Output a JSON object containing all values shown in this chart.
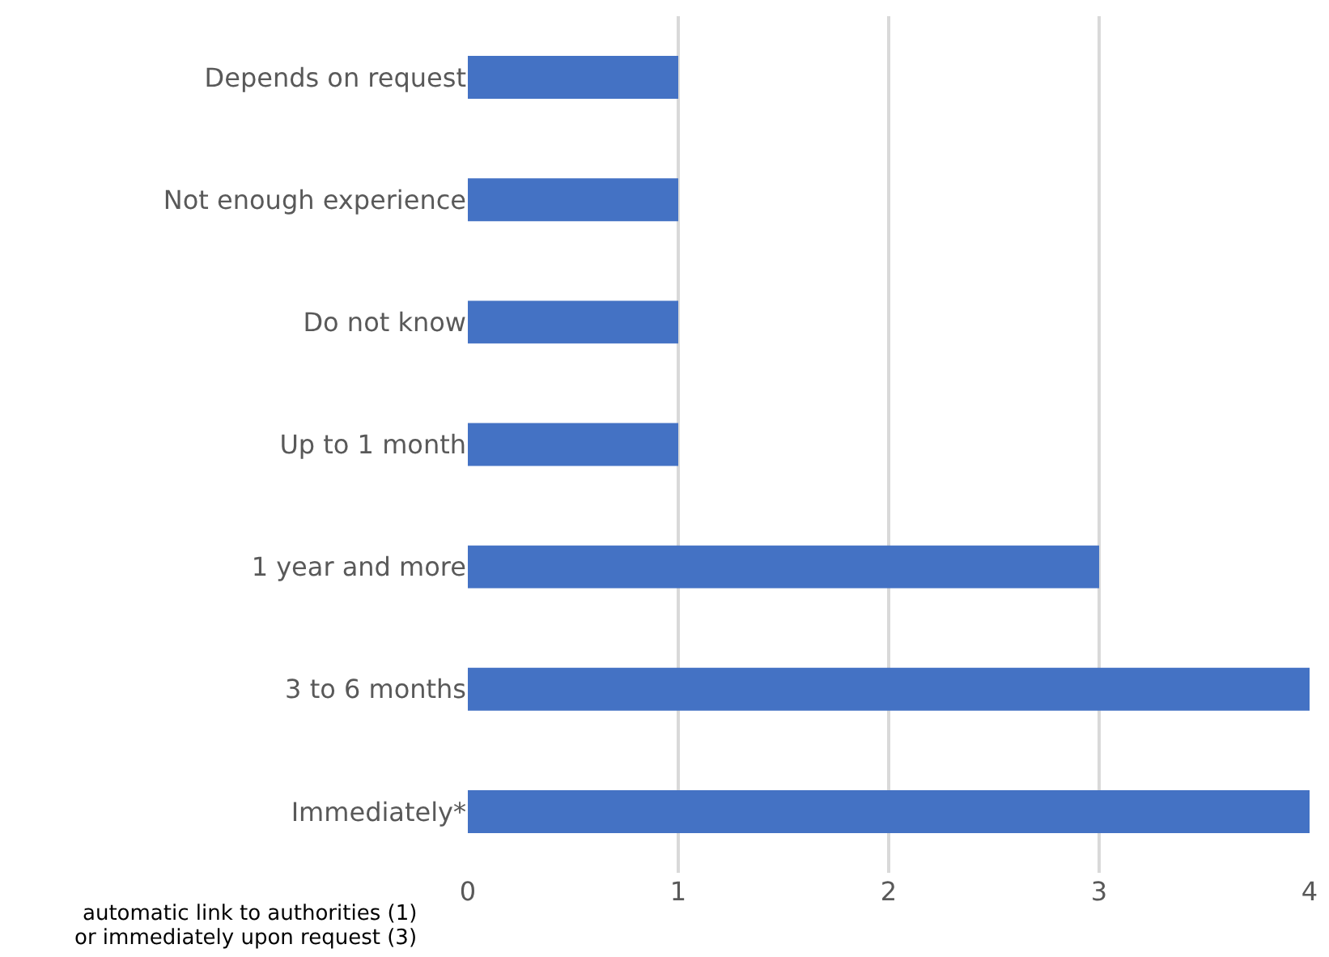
{
  "chart_data": {
    "type": "bar",
    "orientation": "horizontal",
    "categories": [
      "Depends on request",
      "Not enough experience",
      "Do not know",
      "Up to 1 month",
      "1 year and more",
      "3 to 6 months",
      "Immediately*"
    ],
    "values": [
      1,
      1,
      1,
      1,
      3,
      4,
      4
    ],
    "color": "#4472c4",
    "xlim": [
      0,
      4
    ],
    "xticks": [
      0,
      1,
      2,
      3,
      4
    ],
    "grid": "x",
    "legend": false,
    "annotations": [
      "automatic link to authorities (1)",
      "or immediately upon request (3)"
    ]
  }
}
